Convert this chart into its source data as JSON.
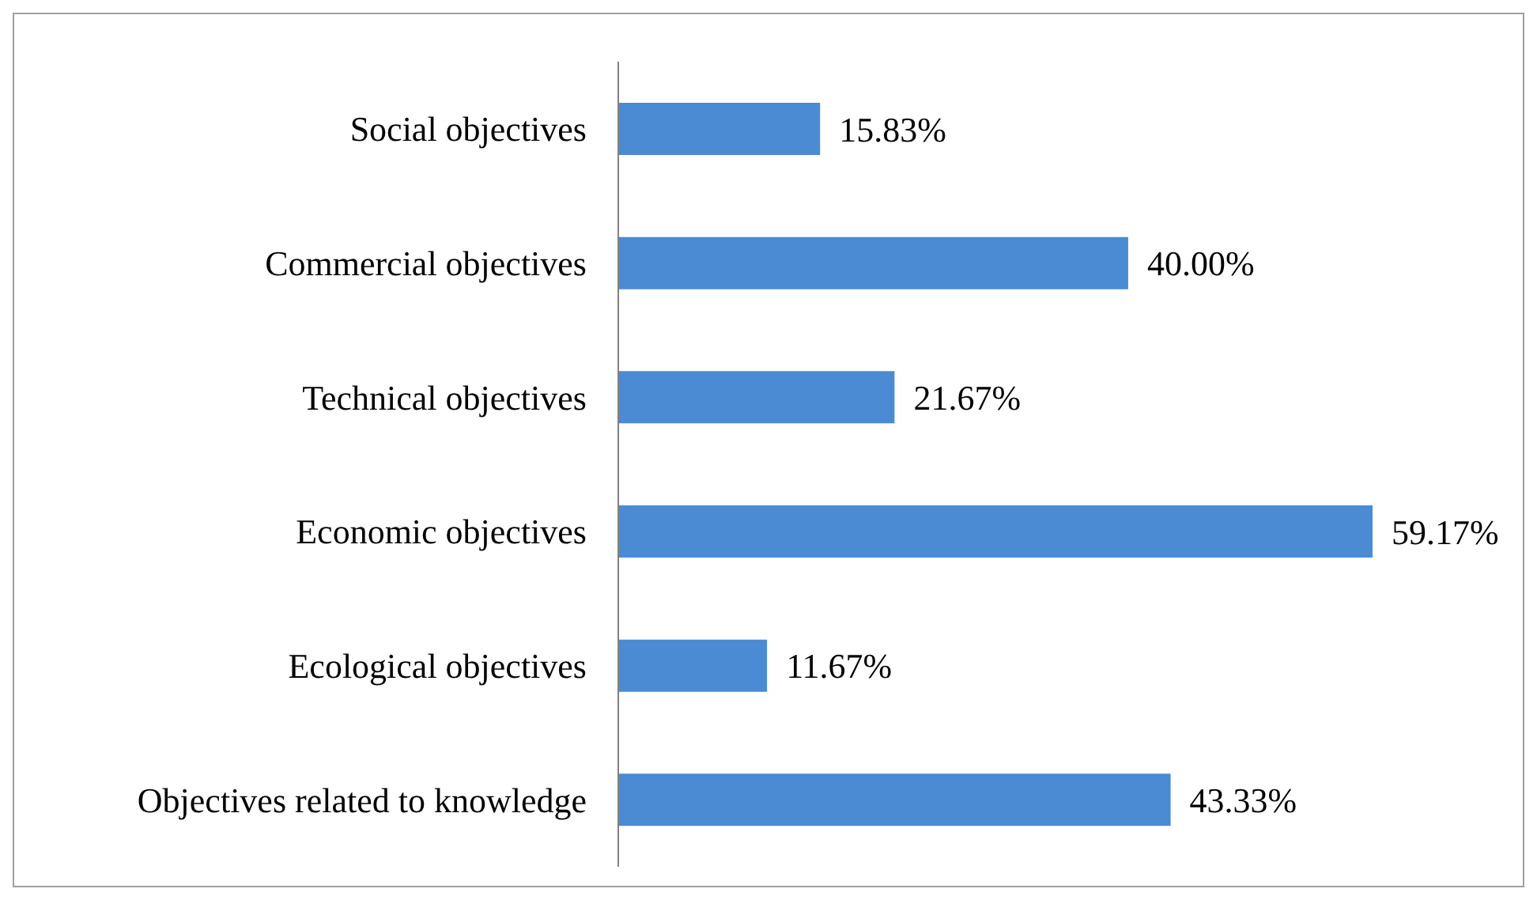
{
  "chart_data": {
    "type": "bar",
    "orientation": "horizontal",
    "categories": [
      "Social objectives",
      "Commercial objectives",
      "Technical objectives",
      "Economic objectives",
      "Ecological objectives",
      "Objectives related to knowledge"
    ],
    "values": [
      15.83,
      40.0,
      21.67,
      59.17,
      11.67,
      43.33
    ],
    "value_labels": [
      "15.83%",
      "40.00%",
      "21.67%",
      "59.17%",
      "11.67%",
      "43.33%"
    ],
    "color": "#4a8bd4",
    "grid": false,
    "legend": false
  }
}
